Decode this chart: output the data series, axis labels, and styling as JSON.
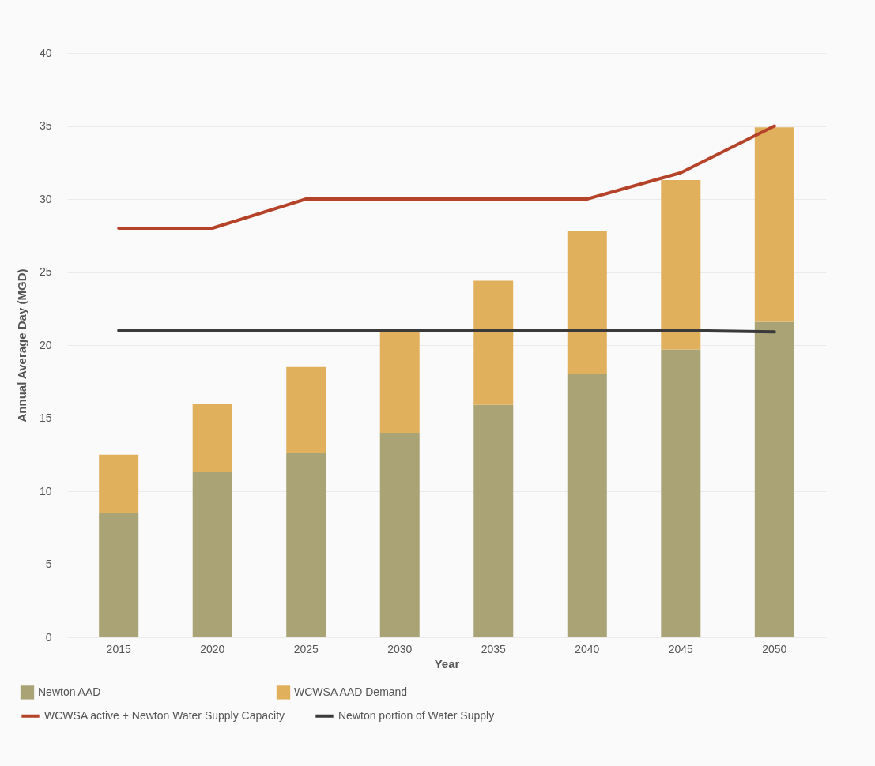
{
  "chart_data": {
    "type": "bar",
    "stacked": true,
    "xlabel": "Year",
    "ylabel": "Annual Average Day (MGD)",
    "categories": [
      "2015",
      "2020",
      "2025",
      "2030",
      "2035",
      "2040",
      "2045",
      "2050"
    ],
    "series": [
      {
        "name": "Newton AAD",
        "color": "#a9a375",
        "values": [
          8.5,
          11.3,
          12.6,
          14.0,
          15.9,
          18.0,
          19.7,
          21.6
        ]
      },
      {
        "name": "WCWSA AAD Demand",
        "color": "#e0b05c",
        "values": [
          4.0,
          4.7,
          5.9,
          7.0,
          8.5,
          9.8,
          11.6,
          13.3
        ]
      },
      {
        "name": "WCWSA active + Newton Water Supply Capacity",
        "type": "line",
        "color": "#b5432a",
        "values": [
          28,
          28,
          30,
          30,
          30,
          30,
          31.8,
          35
        ]
      },
      {
        "name": "Newton portion of Water Supply",
        "type": "line",
        "color": "#3a3a3a",
        "values": [
          21,
          21,
          21,
          21,
          21,
          21,
          21,
          20.9
        ]
      }
    ],
    "ylim": [
      0,
      40
    ],
    "yticks": [
      0,
      5,
      10,
      15,
      20,
      25,
      30,
      35,
      40
    ],
    "grid": "y",
    "legend": "bottom"
  }
}
